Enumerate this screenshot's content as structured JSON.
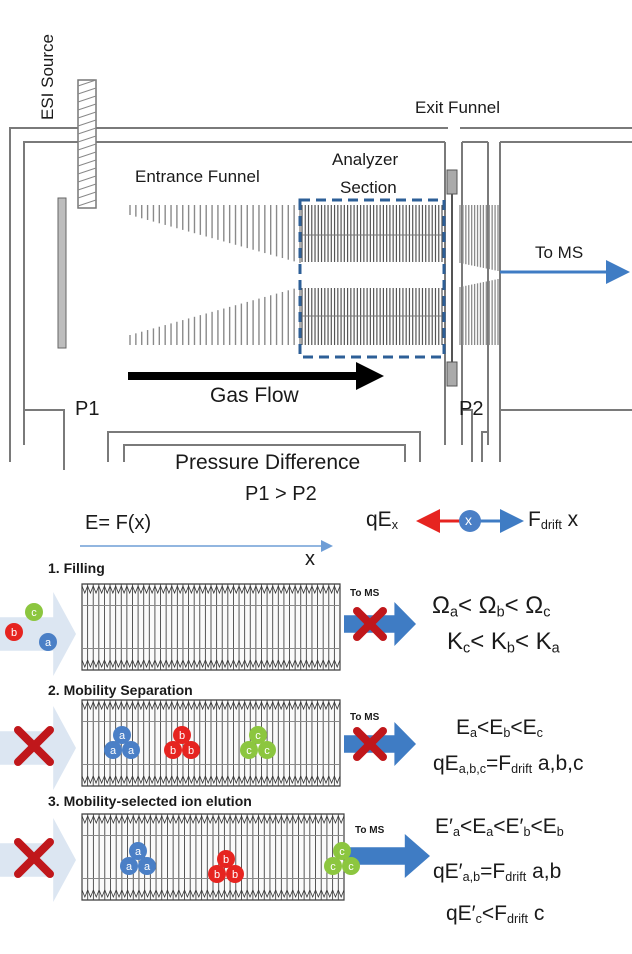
{
  "labels": {
    "esi_source": "ESI Source",
    "exit_funnel": "Exit Funnel",
    "entrance_funnel": "Entrance Funnel",
    "analyzer_line1": "Analyzer",
    "analyzer_line2": "Section",
    "to_ms_top": "To MS",
    "p1": "P1",
    "p2": "P2",
    "gas_flow": "Gas Flow",
    "pressure_difference": "Pressure Difference",
    "pressure_relation": "P1 > P2",
    "e_field": "E= F(x)",
    "x_axis": "x"
  },
  "force_balance": {
    "left": "qE",
    "left_sub": "x",
    "ion": "x",
    "right": "F",
    "right_sub": "drift",
    "right_tail": " x"
  },
  "steps": [
    {
      "title": "1. Filling",
      "to_ms": "To MS",
      "ions_in_trap": [],
      "eq1": [
        "Ω",
        "a",
        "< Ω",
        "b",
        "< Ω",
        "c"
      ],
      "eq2": [
        "K",
        "c",
        "< K",
        "b",
        "< K",
        "a"
      ]
    },
    {
      "title": "2. Mobility Separation",
      "to_ms": "To MS",
      "eq1": [
        "E",
        "a",
        "<E",
        "b",
        "<E",
        "c"
      ],
      "eq2": [
        "qE",
        "a,b,c",
        "=F",
        "drift",
        " a,b,c"
      ]
    },
    {
      "title": "3. Mobility-selected ion elution",
      "to_ms": "To MS",
      "eq1": [
        "E′",
        "a",
        "<E",
        "a",
        "<E′",
        "b",
        "<E",
        "b"
      ],
      "eq2": [
        "qE′",
        "a,b",
        "=F",
        "drift",
        " a,b"
      ],
      "eq3": [
        "qE′",
        "c",
        "<F",
        "drift",
        " c"
      ]
    }
  ],
  "ions": {
    "a": "a",
    "b": "b",
    "c": "c"
  },
  "colors": {
    "ion_a": "#4a7fc6",
    "ion_b": "#e62420",
    "ion_c": "#8cc63f",
    "arrow_blue": "#3f7cc4",
    "cross_red": "#c0171b",
    "dashed_box": "#2d5f97"
  }
}
